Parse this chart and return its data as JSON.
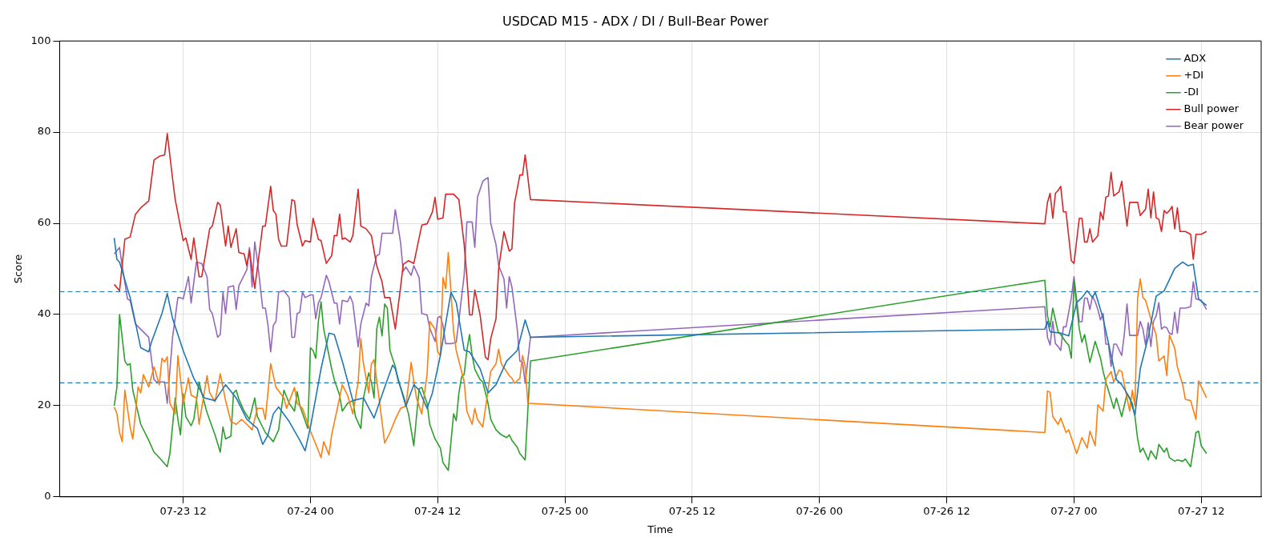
{
  "chart_data": {
    "type": "line",
    "title": "USDCAD M15 - ADX / DI / Bull-Bear Power",
    "xlabel": "Time",
    "ylabel": "Score",
    "xlim": [
      "--07-23T00:21",
      "--07-27T17:39"
    ],
    "xticks": [
      {
        "value": "--07-23T12:00",
        "label": "07-23 12"
      },
      {
        "value": "--07-24T00:00",
        "label": "07-24 00"
      },
      {
        "value": "--07-24T12:00",
        "label": "07-24 12"
      },
      {
        "value": "--07-25T00:00",
        "label": "07-25 00"
      },
      {
        "value": "--07-25T12:00",
        "label": "07-25 12"
      },
      {
        "value": "--07-26T00:00",
        "label": "07-26 00"
      },
      {
        "value": "--07-26T12:00",
        "label": "07-26 12"
      },
      {
        "value": "--07-27T00:00",
        "label": "07-27 00"
      },
      {
        "value": "--07-27T12:00",
        "label": "07-27 12"
      }
    ],
    "ylim": [
      0,
      100
    ],
    "yticks": [
      0,
      20,
      40,
      60,
      80,
      100
    ],
    "grid": true,
    "legend": "top right",
    "marker": "none",
    "line_style": "solid",
    "ref_lines": [
      {
        "axis": "y",
        "value": 45,
        "color": "#1f77b4",
        "line_style": "dashed"
      },
      {
        "axis": "y",
        "value": 25,
        "color": "#1f77b4",
        "line_style": "dashed"
      }
    ],
    "series": [
      {
        "name": "ADX",
        "color": "#1f77b4",
        "x": [
          "--07-23T05:30",
          "--07-23T05:45",
          "--07-23T06:00",
          "--07-23T07:00",
          "--07-23T08:00",
          "--07-23T08:45",
          "--07-23T09:00",
          "--07-23T10:00",
          "--07-23T10:30",
          "--07-23T11:00",
          "--07-23T12:00",
          "--07-23T13:00",
          "--07-23T14:00",
          "--07-23T15:00",
          "--07-23T16:00",
          "--07-23T17:00",
          "--07-23T18:00",
          "--07-23T19:00",
          "--07-23T19:30",
          "--07-23T20:00",
          "--07-23T20:30",
          "--07-23T21:00",
          "--07-23T22:00",
          "--07-23T23:00",
          "--07-23T23:30",
          "--07-24T00:00",
          "--07-24T01:00",
          "--07-24T01:45",
          "--07-24T02:15",
          "--07-24T03:00",
          "--07-24T04:00",
          "--07-24T05:00",
          "--07-24T06:00",
          "--07-24T07:00",
          "--07-24T07:45",
          "--07-24T08:00",
          "--07-24T09:00",
          "--07-24T09:45",
          "--07-24T10:15",
          "--07-24T11:00",
          "--07-24T11:30",
          "--07-24T12:15",
          "--07-24T13:15",
          "--07-24T13:45",
          "--07-24T14:30",
          "--07-24T15:00",
          "--07-24T16:00",
          "--07-24T16:45",
          "--07-24T17:30",
          "--07-24T18:30",
          "--07-24T19:30",
          "--07-24T20:15",
          "--07-24T20:45",
          "--07-26T21:15",
          "--07-26T21:30",
          "--07-26T21:45",
          "--07-26T22:45",
          "--07-26T23:30",
          "--07-27T00:15",
          "--07-27T00:45",
          "--07-27T01:15",
          "--07-27T01:45",
          "--07-27T02:00",
          "--07-27T02:45",
          "--07-27T03:30",
          "--07-27T04:00",
          "--07-27T04:30",
          "--07-27T05:15",
          "--07-27T05:45",
          "--07-27T06:15",
          "--07-27T07:00",
          "--07-27T07:45",
          "--07-27T08:30",
          "--07-27T09:30",
          "--07-27T10:15",
          "--07-27T10:45",
          "--07-27T11:15",
          "--07-27T11:45",
          "--07-27T12:30"
        ],
        "values": [
          56.8,
          52.1,
          51.5,
          43.7,
          32.7,
          31.8,
          33.9,
          40.2,
          44.6,
          39.1,
          32.1,
          26,
          21.7,
          21.1,
          24.6,
          21.7,
          17,
          15,
          11.5,
          13.6,
          18.2,
          19.7,
          16.5,
          12.4,
          10.1,
          15.3,
          28.1,
          35.9,
          35.6,
          29.8,
          21.1,
          21.7,
          17.3,
          24,
          28.9,
          28.1,
          19.9,
          24.6,
          23.4,
          19.4,
          22.8,
          31,
          44.9,
          42.6,
          32.2,
          31.8,
          28.1,
          22.8,
          24.6,
          29.8,
          32.1,
          38.8,
          35,
          36.8,
          38.5,
          36.2,
          35.9,
          35.3,
          42.6,
          43.7,
          45.2,
          43.7,
          44.9,
          39.1,
          31,
          25.7,
          24.6,
          21.7,
          17.9,
          28.1,
          35,
          44,
          45.2,
          50.1,
          51.5,
          50.7,
          51,
          43.4,
          42
        ]
      },
      {
        "name": "+DI",
        "color": "#ff7f0e",
        "x": [
          "--07-23T05:30",
          "--07-23T05:45",
          "--07-23T06:00",
          "--07-23T06:15",
          "--07-23T06:30",
          "--07-23T07:00",
          "--07-23T07:15",
          "--07-23T07:45",
          "--07-23T08:00",
          "--07-23T08:15",
          "--07-23T08:45",
          "--07-23T09:15",
          "--07-23T09:45",
          "--07-23T10:00",
          "--07-23T10:15",
          "--07-23T10:30",
          "--07-23T10:45",
          "--07-23T11:15",
          "--07-23T11:30",
          "--07-23T12:00",
          "--07-23T12:30",
          "--07-23T12:45",
          "--07-23T13:15",
          "--07-23T13:30",
          "--07-23T14:15",
          "--07-23T14:30",
          "--07-23T15:00",
          "--07-23T15:30",
          "--07-23T16:00",
          "--07-23T16:30",
          "--07-23T17:00",
          "--07-23T17:30",
          "--07-23T18:00",
          "--07-23T18:30",
          "--07-23T19:00",
          "--07-23T19:30",
          "--07-23T19:45",
          "--07-23T20:15",
          "--07-23T20:45",
          "--07-23T21:30",
          "--07-23T21:45",
          "--07-23T22:30",
          "--07-23T22:45",
          "--07-23T23:15",
          "--07-24T00:00",
          "--07-24T00:15",
          "--07-24T00:45",
          "--07-24T01:00",
          "--07-24T01:15",
          "--07-24T01:45",
          "--07-24T02:00",
          "--07-24T02:45",
          "--07-24T03:00",
          "--07-24T03:30",
          "--07-24T04:00",
          "--07-24T04:30",
          "--07-24T04:45",
          "--07-24T05:00",
          "--07-24T05:30",
          "--07-24T05:45",
          "--07-24T06:00",
          "--07-24T06:30",
          "--07-24T07:00",
          "--07-24T07:30",
          "--07-24T08:00",
          "--07-24T08:30",
          "--07-24T09:00",
          "--07-24T09:30",
          "--07-24T09:45",
          "--07-24T10:00",
          "--07-24T10:30",
          "--07-24T11:00",
          "--07-24T11:15",
          "--07-24T11:45",
          "--07-24T12:00",
          "--07-24T12:15",
          "--07-24T12:30",
          "--07-24T12:45",
          "--07-24T13:00",
          "--07-24T13:30",
          "--07-24T13:45",
          "--07-24T14:30",
          "--07-24T14:45",
          "--07-24T15:15",
          "--07-24T15:30",
          "--07-24T15:45",
          "--07-24T16:15",
          "--07-24T17:00",
          "--07-24T17:30",
          "--07-24T17:45",
          "--07-24T18:00",
          "--07-24T18:45",
          "--07-24T19:00",
          "--07-24T19:15",
          "--07-24T19:45",
          "--07-24T20:00",
          "--07-24T20:15",
          "--07-24T20:30",
          "--07-24T20:45",
          "--07-26T21:15",
          "--07-26T21:30",
          "--07-26T21:45",
          "--07-26T22:00",
          "--07-26T22:30",
          "--07-26T22:45",
          "--07-26T23:15",
          "--07-26T23:30",
          "--07-27T00:00",
          "--07-27T00:15",
          "--07-27T00:45",
          "--07-27T01:15",
          "--07-27T01:30",
          "--07-27T02:00",
          "--07-27T02:15",
          "--07-27T02:45",
          "--07-27T03:00",
          "--07-27T03:30",
          "--07-27T03:45",
          "--07-27T04:15",
          "--07-27T04:30",
          "--07-27T05:00",
          "--07-27T05:15",
          "--07-27T05:30",
          "--07-27T05:45",
          "--07-27T06:00",
          "--07-27T06:15",
          "--07-27T06:30",
          "--07-27T06:45",
          "--07-27T07:15",
          "--07-27T07:45",
          "--07-27T08:00",
          "--07-27T08:30",
          "--07-27T08:45",
          "--07-27T09:00",
          "--07-27T09:30",
          "--07-27T09:45",
          "--07-27T10:15",
          "--07-27T10:30",
          "--07-27T11:00",
          "--07-27T11:30",
          "--07-27T11:45",
          "--07-27T12:30"
        ],
        "values": [
          19.7,
          18.3,
          14.1,
          12.1,
          23.4,
          15.3,
          12.7,
          24.1,
          22.8,
          26.8,
          24.1,
          28.5,
          24.6,
          30.4,
          29.6,
          30.7,
          20.5,
          18.2,
          31,
          20.5,
          26.1,
          22.3,
          21.7,
          15.9,
          26.6,
          22.8,
          20.9,
          27,
          21.1,
          16.5,
          15.9,
          17,
          15.9,
          14.7,
          19.4,
          19.4,
          17,
          29.2,
          24,
          21.7,
          19.4,
          24,
          20.5,
          19.4,
          14.4,
          13,
          10.1,
          8.6,
          12.1,
          9.2,
          13.6,
          21.7,
          24.6,
          22.3,
          18.2,
          25.2,
          34.7,
          29.2,
          22.8,
          29.2,
          30.1,
          21.1,
          11.8,
          14.1,
          17,
          19.4,
          19.9,
          29.5,
          25.2,
          21.7,
          18.2,
          26.9,
          38.5,
          36.8,
          31.8,
          31,
          48.1,
          45.7,
          53.6,
          36.2,
          32.1,
          25.2,
          18.8,
          15.9,
          19.4,
          17,
          15.3,
          27.5,
          29.2,
          32.4,
          29.2,
          26.6,
          26,
          24.9,
          26,
          31,
          28.6,
          20.5,
          20.5,
          14.1,
          23.2,
          22.9,
          17.6,
          15.9,
          17.3,
          14.1,
          14.7,
          11.2,
          9.5,
          13,
          10.7,
          14.4,
          11.2,
          20.2,
          18.8,
          25.7,
          27.5,
          25.2,
          27.8,
          27.5,
          21.7,
          18.8,
          23.4,
          19.9,
          43.7,
          47.8,
          43.7,
          43.1,
          39,
          35.5,
          29.8,
          30.9,
          26.6,
          35.5,
          32.6,
          28.5,
          24.6,
          21.4,
          21.1,
          17,
          25.4,
          21.7
        ]
      },
      {
        "name": "-DI",
        "color": "#2ca02c",
        "x": [
          "--07-23T05:30",
          "--07-23T05:45",
          "--07-23T06:00",
          "--07-23T06:30",
          "--07-23T06:45",
          "--07-23T07:00",
          "--07-23T07:15",
          "--07-23T08:00",
          "--07-23T08:45",
          "--07-23T09:15",
          "--07-23T09:45",
          "--07-23T10:30",
          "--07-23T10:45",
          "--07-23T11:15",
          "--07-23T11:30",
          "--07-23T11:45",
          "--07-23T12:00",
          "--07-23T12:15",
          "--07-23T12:45",
          "--07-23T13:00",
          "--07-23T13:30",
          "--07-23T13:45",
          "--07-23T14:15",
          "--07-23T15:00",
          "--07-23T15:30",
          "--07-23T15:45",
          "--07-23T16:00",
          "--07-23T16:30",
          "--07-23T16:45",
          "--07-23T17:00",
          "--07-23T17:15",
          "--07-23T17:45",
          "--07-23T18:15",
          "--07-23T18:45",
          "--07-23T19:00",
          "--07-23T19:45",
          "--07-23T20:30",
          "--07-23T21:00",
          "--07-23T21:30",
          "--07-23T22:00",
          "--07-23T22:30",
          "--07-23T22:45",
          "--07-23T23:00",
          "--07-23T23:45",
          "--07-24T00:00",
          "--07-24T00:15",
          "--07-24T00:30",
          "--07-24T00:45",
          "--07-24T01:00",
          "--07-24T01:15",
          "--07-24T01:45",
          "--07-24T02:00",
          "--07-24T02:15",
          "--07-24T02:45",
          "--07-24T03:00",
          "--07-24T03:30",
          "--07-24T04:00",
          "--07-24T04:15",
          "--07-24T04:45",
          "--07-24T05:00",
          "--07-24T05:30",
          "--07-24T05:45",
          "--07-24T06:00",
          "--07-24T06:15",
          "--07-24T06:30",
          "--07-24T06:45",
          "--07-24T07:00",
          "--07-24T07:15",
          "--07-24T07:30",
          "--07-24T08:00",
          "--07-24T08:15",
          "--07-24T08:45",
          "--07-24T09:15",
          "--07-24T09:45",
          "--07-24T10:00",
          "--07-24T10:15",
          "--07-24T10:30",
          "--07-24T11:00",
          "--07-24T11:15",
          "--07-24T11:45",
          "--07-24T12:15",
          "--07-24T12:30",
          "--07-24T13:00",
          "--07-24T13:30",
          "--07-24T13:45",
          "--07-24T14:00",
          "--07-24T14:15",
          "--07-24T14:30",
          "--07-24T14:45",
          "--07-24T15:00",
          "--07-24T15:15",
          "--07-24T15:30",
          "--07-24T16:00",
          "--07-24T16:15",
          "--07-24T16:45",
          "--07-24T17:00",
          "--07-24T17:30",
          "--07-24T18:00",
          "--07-24T18:30",
          "--07-24T18:45",
          "--07-24T19:00",
          "--07-24T19:30",
          "--07-24T19:45",
          "--07-24T20:15",
          "--07-24T20:45",
          "--07-26T21:15",
          "--07-26T21:30",
          "--07-26T21:45",
          "--07-26T22:00",
          "--07-26T22:30",
          "--07-26T22:45",
          "--07-26T23:15",
          "--07-26T23:30",
          "--07-26T23:45",
          "--07-27T00:00",
          "--07-27T00:30",
          "--07-27T00:45",
          "--07-27T01:00",
          "--07-27T01:30",
          "--07-27T02:00",
          "--07-27T02:30",
          "--07-27T02:45",
          "--07-27T03:00",
          "--07-27T03:30",
          "--07-27T03:45",
          "--07-27T04:00",
          "--07-27T04:30",
          "--07-27T05:00",
          "--07-27T05:30",
          "--07-27T05:45",
          "--07-27T06:00",
          "--07-27T06:15",
          "--07-27T06:30",
          "--07-27T07:00",
          "--07-27T07:15",
          "--07-27T07:45",
          "--07-27T08:00",
          "--07-27T08:30",
          "--07-27T08:45",
          "--07-27T09:00",
          "--07-27T09:30",
          "--07-27T09:45",
          "--07-27T10:15",
          "--07-27T10:30",
          "--07-27T11:00",
          "--07-27T11:30",
          "--07-27T11:45",
          "--07-27T12:00",
          "--07-27T12:30"
        ],
        "values": [
          20,
          24,
          40,
          29.8,
          28.9,
          29.2,
          23.4,
          15.9,
          12.4,
          9.8,
          8.6,
          6.6,
          9.5,
          21.7,
          17,
          13.6,
          22.6,
          17.6,
          15.6,
          17,
          25.2,
          22.8,
          18.5,
          13.6,
          9.8,
          15.3,
          12.7,
          13.3,
          22.8,
          23.4,
          21.4,
          18.8,
          17,
          21.7,
          17.6,
          14.1,
          12.1,
          14.7,
          23.4,
          20.5,
          18.8,
          23.1,
          20,
          15,
          32.7,
          32.1,
          30.4,
          38.5,
          42.8,
          36.8,
          31,
          28.1,
          25.7,
          22.3,
          18.8,
          20.5,
          21.1,
          17.6,
          15,
          21.7,
          27.2,
          25.2,
          21.7,
          36.8,
          39.4,
          35.3,
          42.3,
          41.4,
          32.1,
          28.6,
          25.7,
          22.3,
          18.2,
          11.2,
          17.6,
          23.7,
          24,
          20.5,
          15.9,
          12.7,
          10.7,
          7.5,
          5.8,
          18.2,
          16.7,
          22.8,
          26.3,
          26.9,
          32.1,
          35.6,
          31,
          28,
          25.7,
          25.2,
          20.5,
          17,
          14.7,
          13.6,
          13,
          13.6,
          12.4,
          10.9,
          9.5,
          8.1,
          29.8,
          47.5,
          39.7,
          37.3,
          41.4,
          36.2,
          35.6,
          33.9,
          33.3,
          30.4,
          47.2,
          36.8,
          33.9,
          35.6,
          29.5,
          34.1,
          30.4,
          27.5,
          25.2,
          21.4,
          19.4,
          21.7,
          17.6,
          22.6,
          20.5,
          17.6,
          12.7,
          9.8,
          10.7,
          8.1,
          10.1,
          8.3,
          11.5,
          9.8,
          10.7,
          8.6,
          7.8,
          8.1,
          7.8,
          8.3,
          6.6,
          14.1,
          14.4,
          11.2,
          9.5
        ]
      },
      {
        "name": "Bull power",
        "color": "#d62728",
        "x": [
          "--07-23T05:30",
          "--07-23T06:00",
          "--07-23T06:30",
          "--07-23T07:00",
          "--07-23T07:30",
          "--07-23T08:00",
          "--07-23T08:45",
          "--07-23T09:15",
          "--07-23T09:45",
          "--07-23T10:15",
          "--07-23T10:30",
          "--07-23T11:00",
          "--07-23T11:15",
          "--07-23T12:00",
          "--07-23T12:15",
          "--07-23T12:45",
          "--07-23T13:00",
          "--07-23T13:30",
          "--07-23T13:45",
          "--07-23T14:30",
          "--07-23T14:45",
          "--07-23T15:15",
          "--07-23T15:30",
          "--07-23T16:00",
          "--07-23T16:15",
          "--07-23T16:30",
          "--07-23T17:00",
          "--07-23T17:15",
          "--07-23T17:45",
          "--07-23T18:00",
          "--07-23T18:15",
          "--07-23T18:45",
          "--07-23T19:30",
          "--07-23T19:45",
          "--07-23T20:15",
          "--07-23T20:30",
          "--07-23T20:45",
          "--07-23T21:00",
          "--07-23T21:15",
          "--07-23T21:45",
          "--07-23T22:00",
          "--07-23T22:15",
          "--07-23T22:30",
          "--07-23T22:45",
          "--07-23T23:15",
          "--07-23T23:30",
          "--07-24T00:00",
          "--07-24T00:15",
          "--07-24T00:45",
          "--07-24T01:00",
          "--07-24T01:30",
          "--07-24T02:00",
          "--07-24T02:15",
          "--07-24T02:30",
          "--07-24T02:45",
          "--07-24T03:00",
          "--07-24T03:15",
          "--07-24T03:45",
          "--07-24T04:00",
          "--07-24T04:30",
          "--07-24T04:45",
          "--07-24T05:15",
          "--07-24T05:45",
          "--07-24T06:15",
          "--07-24T06:45",
          "--07-24T07:00",
          "--07-24T07:30",
          "--07-24T08:00",
          "--07-24T08:30",
          "--07-24T08:45",
          "--07-24T09:15",
          "--07-24T09:45",
          "--07-24T10:30",
          "--07-24T11:00",
          "--07-24T11:30",
          "--07-24T11:45",
          "--07-24T12:00",
          "--07-24T12:30",
          "--07-24T12:45",
          "--07-24T13:30",
          "--07-24T14:00",
          "--07-24T14:30",
          "--07-24T14:45",
          "--07-24T15:00",
          "--07-24T15:15",
          "--07-24T15:30",
          "--07-24T16:00",
          "--07-24T16:30",
          "--07-24T16:45",
          "--07-24T17:00",
          "--07-24T17:30",
          "--07-24T17:45",
          "--07-24T18:15",
          "--07-24T18:45",
          "--07-24T19:00",
          "--07-24T19:15",
          "--07-24T19:45",
          "--07-24T20:00",
          "--07-24T20:15",
          "--07-24T20:45",
          "--07-26T21:15",
          "--07-26T21:30",
          "--07-26T21:45",
          "--07-26T22:00",
          "--07-26T22:15",
          "--07-26T22:30",
          "--07-26T22:45",
          "--07-26T23:00",
          "--07-26T23:15",
          "--07-26T23:45",
          "--07-27T00:00",
          "--07-27T00:30",
          "--07-27T00:45",
          "--07-27T01:00",
          "--07-27T01:15",
          "--07-27T01:30",
          "--07-27T01:45",
          "--07-27T02:15",
          "--07-27T02:30",
          "--07-27T02:45",
          "--07-27T03:00",
          "--07-27T03:15",
          "--07-27T03:30",
          "--07-27T03:45",
          "--07-27T04:15",
          "--07-27T04:30",
          "--07-27T05:00",
          "--07-27T05:15",
          "--07-27T06:00",
          "--07-27T06:15",
          "--07-27T06:45",
          "--07-27T07:00",
          "--07-27T07:15",
          "--07-27T07:30",
          "--07-27T07:45",
          "--07-27T08:00",
          "--07-27T08:15",
          "--07-27T08:30",
          "--07-27T08:45",
          "--07-27T09:00",
          "--07-27T09:15",
          "--07-27T09:30",
          "--07-27T09:45",
          "--07-27T10:00",
          "--07-27T10:30",
          "--07-27T11:00",
          "--07-27T11:15",
          "--07-27T11:30",
          "--07-27T12:00",
          "--07-27T12:30"
        ],
        "values": [
          46.6,
          45.2,
          56.5,
          57,
          62,
          63.4,
          64.9,
          73.9,
          74.7,
          75,
          79.7,
          69.8,
          65.2,
          56.2,
          56.8,
          52.1,
          56.8,
          48.3,
          48.3,
          58.8,
          59.4,
          64.6,
          64,
          55,
          59.4,
          54.7,
          58.8,
          53.6,
          53.3,
          50.7,
          54.1,
          45.7,
          59.4,
          59.4,
          68.1,
          62.8,
          62,
          56.5,
          55,
          55,
          59.9,
          65.2,
          64.9,
          59.7,
          55,
          56.2,
          55.9,
          61.1,
          56.5,
          56.2,
          51.2,
          52.9,
          57.3,
          57.3,
          62,
          56.5,
          56.8,
          55.9,
          57.3,
          67.5,
          59.4,
          58.8,
          57.3,
          50.7,
          47.2,
          43.7,
          43.7,
          36.8,
          46,
          51,
          51.8,
          51.2,
          59.6,
          59.9,
          62.5,
          65.7,
          60.9,
          61.2,
          66.4,
          66.4,
          65.2,
          55.3,
          48.3,
          39.9,
          39.9,
          45.4,
          39.9,
          30.6,
          30.1,
          34.7,
          39.1,
          50.1,
          58.2,
          53.9,
          54.4,
          64.5,
          70.6,
          70.6,
          75,
          65.2,
          59.9,
          64.6,
          66.6,
          61.1,
          66.6,
          67.2,
          68.1,
          62.5,
          62.5,
          51.8,
          51.2,
          61.1,
          61.1,
          55.9,
          55.9,
          58.8,
          55.9,
          57.3,
          62.5,
          60.8,
          65.7,
          66,
          71.2,
          66,
          66.9,
          69.2,
          59.4,
          64.6,
          64.6,
          61.7,
          63.1,
          67.5,
          61.2,
          66.9,
          61.2,
          60.9,
          58.2,
          62.8,
          62.2,
          62.8,
          63.7,
          58.8,
          63.4,
          58.2,
          58.2,
          57.6,
          52.1,
          57.6,
          57.6,
          58.2
        ]
      },
      {
        "name": "Bear power",
        "color": "#9467bd",
        "x": [
          "--07-23T05:30",
          "--07-23T06:00",
          "--07-23T06:15",
          "--07-23T06:45",
          "--07-23T07:00",
          "--07-23T07:30",
          "--07-23T08:45",
          "--07-23T09:15",
          "--07-23T09:30",
          "--07-23T10:15",
          "--07-23T10:30",
          "--07-23T11:00",
          "--07-23T11:30",
          "--07-23T11:45",
          "--07-23T12:00",
          "--07-23T12:30",
          "--07-23T12:45",
          "--07-23T13:15",
          "--07-23T13:45",
          "--07-23T14:15",
          "--07-23T14:30",
          "--07-23T14:45",
          "--07-23T15:15",
          "--07-23T15:30",
          "--07-23T15:45",
          "--07-23T16:00",
          "--07-23T16:15",
          "--07-23T16:45",
          "--07-23T17:00",
          "--07-23T17:15",
          "--07-23T18:00",
          "--07-23T18:15",
          "--07-23T18:30",
          "--07-23T18:45",
          "--07-23T19:00",
          "--07-23T19:30",
          "--07-23T19:45",
          "--07-23T20:00",
          "--07-23T20:15",
          "--07-23T20:30",
          "--07-23T20:45",
          "--07-23T21:00",
          "--07-23T21:30",
          "--07-23T22:00",
          "--07-23T22:15",
          "--07-23T22:30",
          "--07-23T22:45",
          "--07-23T23:00",
          "--07-23T23:15",
          "--07-23T23:30",
          "--07-24T00:00",
          "--07-24T00:15",
          "--07-24T00:30",
          "--07-24T00:45",
          "--07-24T01:00",
          "--07-24T01:30",
          "--07-24T01:45",
          "--07-24T02:15",
          "--07-24T02:30",
          "--07-24T02:45",
          "--07-24T03:00",
          "--07-24T03:30",
          "--07-24T03:45",
          "--07-24T04:00",
          "--07-24T04:30",
          "--07-24T04:45",
          "--07-24T05:15",
          "--07-24T05:30",
          "--07-24T05:45",
          "--07-24T06:15",
          "--07-24T06:30",
          "--07-24T06:45",
          "--07-24T07:45",
          "--07-24T08:00",
          "--07-24T08:30",
          "--07-24T08:45",
          "--07-24T09:00",
          "--07-24T09:30",
          "--07-24T09:45",
          "--07-24T10:15",
          "--07-24T10:30",
          "--07-24T11:00",
          "--07-24T11:15",
          "--07-24T11:45",
          "--07-24T12:00",
          "--07-24T12:15",
          "--07-24T12:30",
          "--07-24T12:45",
          "--07-24T13:15",
          "--07-24T13:45",
          "--07-24T14:00",
          "--07-24T14:30",
          "--07-24T14:45",
          "--07-24T15:15",
          "--07-24T15:30",
          "--07-24T15:45",
          "--07-24T16:15",
          "--07-24T16:30",
          "--07-24T16:45",
          "--07-24T17:00",
          "--07-24T17:30",
          "--07-24T17:45",
          "--07-24T18:15",
          "--07-24T18:30",
          "--07-24T18:45",
          "--07-24T19:00",
          "--07-24T19:30",
          "--07-24T19:45",
          "--07-24T20:00",
          "--07-24T20:15",
          "--07-24T20:45",
          "--07-26T21:15",
          "--07-26T21:30",
          "--07-26T21:45",
          "--07-26T22:00",
          "--07-26T22:15",
          "--07-26T22:30",
          "--07-26T22:45",
          "--07-26T23:00",
          "--07-26T23:15",
          "--07-26T23:45",
          "--07-27T00:00",
          "--07-27T00:30",
          "--07-27T00:45",
          "--07-27T01:00",
          "--07-27T01:15",
          "--07-27T01:30",
          "--07-27T01:45",
          "--07-27T02:00",
          "--07-27T02:15",
          "--07-27T02:30",
          "--07-27T02:45",
          "--07-27T03:00",
          "--07-27T03:15",
          "--07-27T03:30",
          "--07-27T03:45",
          "--07-27T04:00",
          "--07-27T04:30",
          "--07-27T04:45",
          "--07-27T05:00",
          "--07-27T05:15",
          "--07-27T05:45",
          "--07-27T06:00",
          "--07-27T06:15",
          "--07-27T06:30",
          "--07-27T06:45",
          "--07-27T07:00",
          "--07-27T07:15",
          "--07-27T07:30",
          "--07-27T07:45",
          "--07-27T08:00",
          "--07-27T08:15",
          "--07-27T08:30",
          "--07-27T08:45",
          "--07-27T09:00",
          "--07-27T09:15",
          "--07-27T09:30",
          "--07-27T09:45",
          "--07-27T10:00",
          "--07-27T10:30",
          "--07-27T11:00",
          "--07-27T11:15",
          "--07-27T11:30",
          "--07-27T12:00",
          "--07-27T12:30"
        ],
        "values": [
          53.3,
          54.7,
          50.7,
          43.4,
          43.1,
          37.9,
          35,
          25.7,
          25.2,
          25.2,
          20.5,
          35,
          43.7,
          43.7,
          43.4,
          48.3,
          42.5,
          51.5,
          51.2,
          48.3,
          41.1,
          40.2,
          35,
          35.6,
          44.9,
          40.2,
          46,
          46.3,
          41.1,
          46.3,
          49.8,
          54.7,
          46,
          55.9,
          51.8,
          41.4,
          41.4,
          37.6,
          31.8,
          37.6,
          38.5,
          44.9,
          45.2,
          43.7,
          35,
          35,
          40.2,
          40.5,
          44.9,
          43.7,
          44.3,
          44.3,
          39.1,
          42.5,
          43.7,
          48.6,
          47.2,
          42.5,
          42.5,
          37.9,
          43.1,
          42.8,
          44,
          42.5,
          32.9,
          37.9,
          42.5,
          41.9,
          48.3,
          52.9,
          53.2,
          57.8,
          57.8,
          63,
          55.8,
          49.5,
          50.4,
          48.6,
          50.7,
          48.1,
          40.2,
          39.9,
          37,
          34.1,
          39.3,
          39.6,
          37.6,
          33.6,
          33.6,
          33.9,
          38.8,
          48.7,
          60.3,
          60.3,
          54.7,
          65.7,
          69.2,
          69.7,
          70,
          60,
          55.3,
          50.7,
          47.8,
          41.4,
          48.3,
          46,
          36.8,
          29.8,
          29.5,
          24.9,
          35,
          41.7,
          35,
          33.3,
          38.5,
          33.6,
          33,
          32.1,
          37.3,
          37.3,
          43.7,
          48.3,
          38.4,
          38.4,
          43.6,
          43.6,
          41.1,
          44,
          42.8,
          41.1,
          38.8,
          40.2,
          33.5,
          33.5,
          28.6,
          33.5,
          33.5,
          31,
          35.8,
          42.3,
          35.4,
          35.4,
          35.4,
          38.5,
          36.8,
          33.3,
          38.2,
          33,
          38.5,
          39.7,
          42.6,
          36.8,
          37.3,
          37.1,
          35.9,
          35.6,
          40.5,
          35.9,
          41.4,
          41.4,
          41.7,
          47.2,
          43.4,
          43.1,
          41.1
        ]
      }
    ]
  }
}
